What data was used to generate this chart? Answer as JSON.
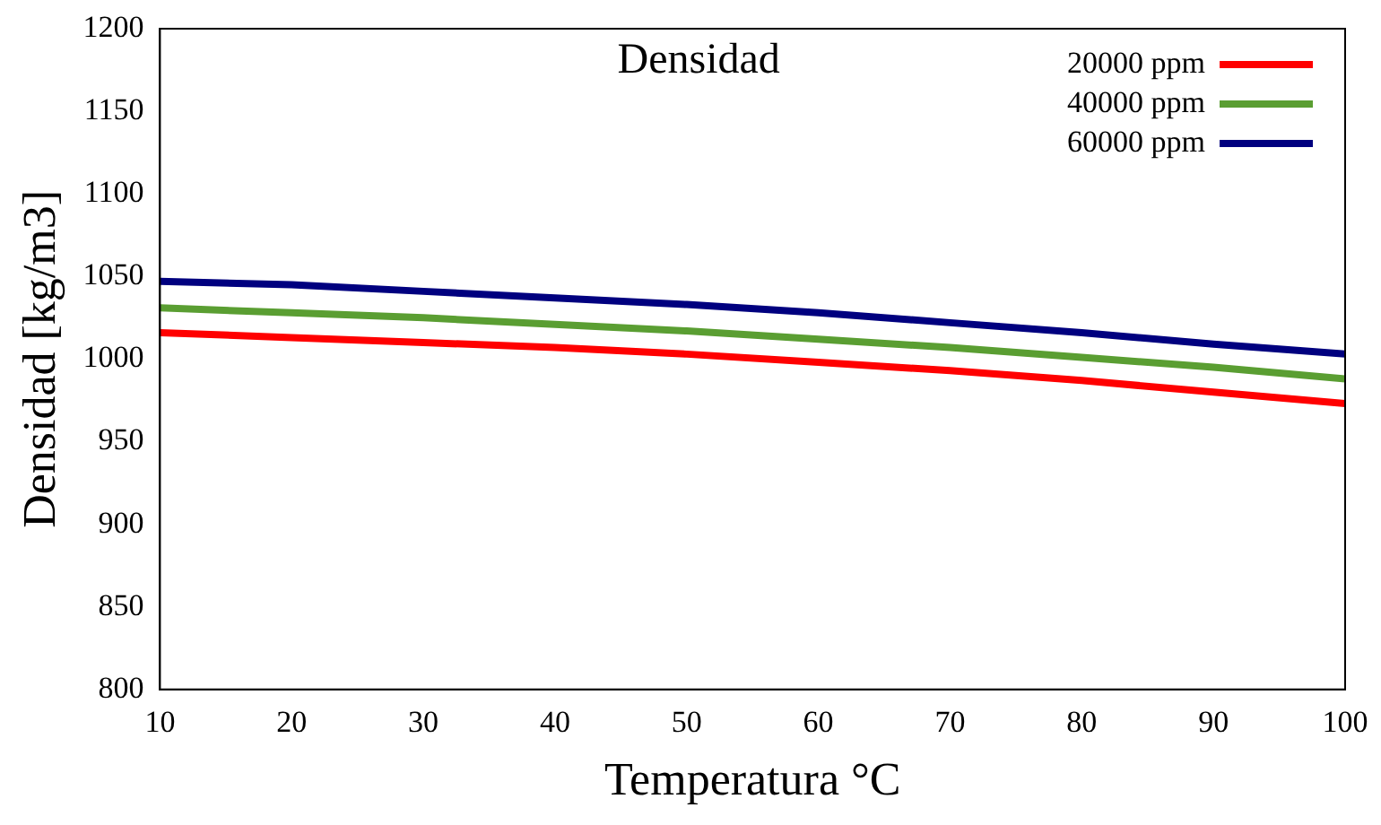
{
  "chart_data": {
    "type": "line",
    "title": "Densidad",
    "xlabel": "Temperatura °C",
    "ylabel": "Densidad [kg/m3]",
    "x": [
      10,
      20,
      30,
      40,
      50,
      60,
      70,
      80,
      90,
      100
    ],
    "series": [
      {
        "name": "20000 ppm",
        "color": "#ff0000",
        "values": [
          1016,
          1013,
          1010,
          1007,
          1003,
          998,
          993,
          987,
          980,
          973
        ]
      },
      {
        "name": "40000 ppm",
        "color": "#5a9e32",
        "values": [
          1031,
          1028,
          1025,
          1021,
          1017,
          1012,
          1007,
          1001,
          995,
          988
        ]
      },
      {
        "name": "60000 ppm",
        "color": "#00007f",
        "values": [
          1047,
          1045,
          1041,
          1037,
          1033,
          1028,
          1022,
          1016,
          1009,
          1003
        ]
      }
    ],
    "xlim": [
      10,
      100
    ],
    "xticks": [
      10,
      20,
      30,
      40,
      50,
      60,
      70,
      80,
      90,
      100
    ],
    "ylim": [
      800,
      1200
    ],
    "yticks": [
      800,
      850,
      900,
      950,
      1000,
      1050,
      1100,
      1150,
      1200
    ],
    "grid": false,
    "legend": "top right",
    "marker": "none",
    "line_style": "solid"
  }
}
